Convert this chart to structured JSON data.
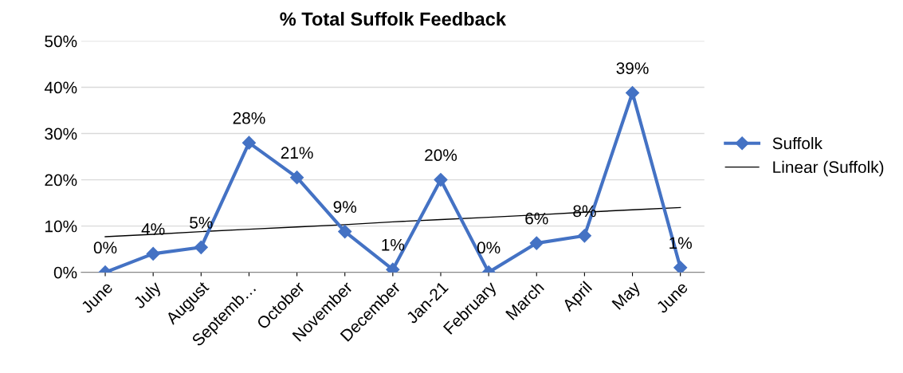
{
  "chart_data": {
    "type": "line",
    "title": "% Total Suffolk Feedback",
    "categories": [
      "June",
      "July",
      "August",
      "Septemb…",
      "October",
      "November",
      "December",
      "Jan-21",
      "February",
      "March",
      "April",
      "May",
      "June"
    ],
    "series": [
      {
        "name": "Suffolk",
        "color": "#4472c4",
        "marker": "diamond",
        "values": [
          0,
          4,
          5.4,
          28,
          20.5,
          8.8,
          0.6,
          20,
          0,
          6.3,
          7.9,
          38.8,
          1
        ],
        "value_labels": [
          "0%",
          "4%",
          "5%",
          "28%",
          "21%",
          "9%",
          "1%",
          "20%",
          "0%",
          "6%",
          "8%",
          "39%",
          "1%"
        ]
      },
      {
        "name": "Linear (Suffolk)",
        "color": "#000000",
        "marker": "none",
        "values": [
          7.7,
          8.2,
          8.8,
          9.3,
          9.8,
          10.3,
          10.9,
          11.4,
          11.9,
          12.4,
          13.0,
          13.5,
          14.0
        ]
      }
    ],
    "ylim": [
      0,
      50
    ],
    "yticks": [
      {
        "value": 0,
        "label": "0%"
      },
      {
        "value": 10,
        "label": "10%"
      },
      {
        "value": 20,
        "label": "20%"
      },
      {
        "value": 30,
        "label": "30%"
      },
      {
        "value": 40,
        "label": "40%"
      },
      {
        "value": 50,
        "label": "50%"
      }
    ],
    "grid": "y",
    "legend": "right",
    "line_style": "solid"
  }
}
